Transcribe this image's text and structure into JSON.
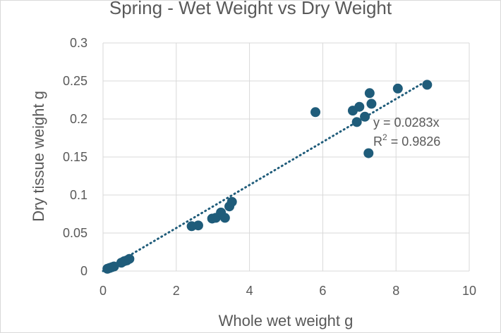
{
  "chart_data": {
    "type": "scatter",
    "title": "Spring - Wet Weight vs Dry Weight",
    "xlabel": "Whole wet weight g",
    "ylabel": "Dry tissue weight g",
    "xlim": [
      0,
      10
    ],
    "ylim": [
      0,
      0.3
    ],
    "x_ticks": [
      "0",
      "2",
      "4",
      "6",
      "8",
      "10"
    ],
    "y_ticks": [
      "0",
      "0.05",
      "0.1",
      "0.15",
      "0.2",
      "0.25",
      "0.3"
    ],
    "grid": true,
    "legend": "none",
    "marker_color": "#1F5C7A",
    "trendline_color": "#1F5C7A",
    "trendline": {
      "type": "linear-through-origin",
      "slope": 0.0283,
      "equation": "y = 0.0283x",
      "r2_prefix": "R",
      "r2_exponent": "2",
      "r2_value": " = 0.9826"
    },
    "points": [
      {
        "x": 0.12,
        "y": 0.003
      },
      {
        "x": 0.18,
        "y": 0.004
      },
      {
        "x": 0.24,
        "y": 0.005
      },
      {
        "x": 0.3,
        "y": 0.006
      },
      {
        "x": 0.5,
        "y": 0.011
      },
      {
        "x": 0.58,
        "y": 0.013
      },
      {
        "x": 0.65,
        "y": 0.014
      },
      {
        "x": 0.72,
        "y": 0.016
      },
      {
        "x": 2.42,
        "y": 0.059
      },
      {
        "x": 2.6,
        "y": 0.06
      },
      {
        "x": 2.98,
        "y": 0.069
      },
      {
        "x": 3.08,
        "y": 0.07
      },
      {
        "x": 3.22,
        "y": 0.077
      },
      {
        "x": 3.33,
        "y": 0.07
      },
      {
        "x": 3.45,
        "y": 0.085
      },
      {
        "x": 3.52,
        "y": 0.091
      },
      {
        "x": 5.8,
        "y": 0.209
      },
      {
        "x": 6.82,
        "y": 0.211
      },
      {
        "x": 6.93,
        "y": 0.196
      },
      {
        "x": 7.0,
        "y": 0.216
      },
      {
        "x": 7.15,
        "y": 0.203
      },
      {
        "x": 7.25,
        "y": 0.155
      },
      {
        "x": 7.28,
        "y": 0.234
      },
      {
        "x": 7.33,
        "y": 0.22
      },
      {
        "x": 8.05,
        "y": 0.24
      },
      {
        "x": 8.85,
        "y": 0.245
      }
    ]
  }
}
